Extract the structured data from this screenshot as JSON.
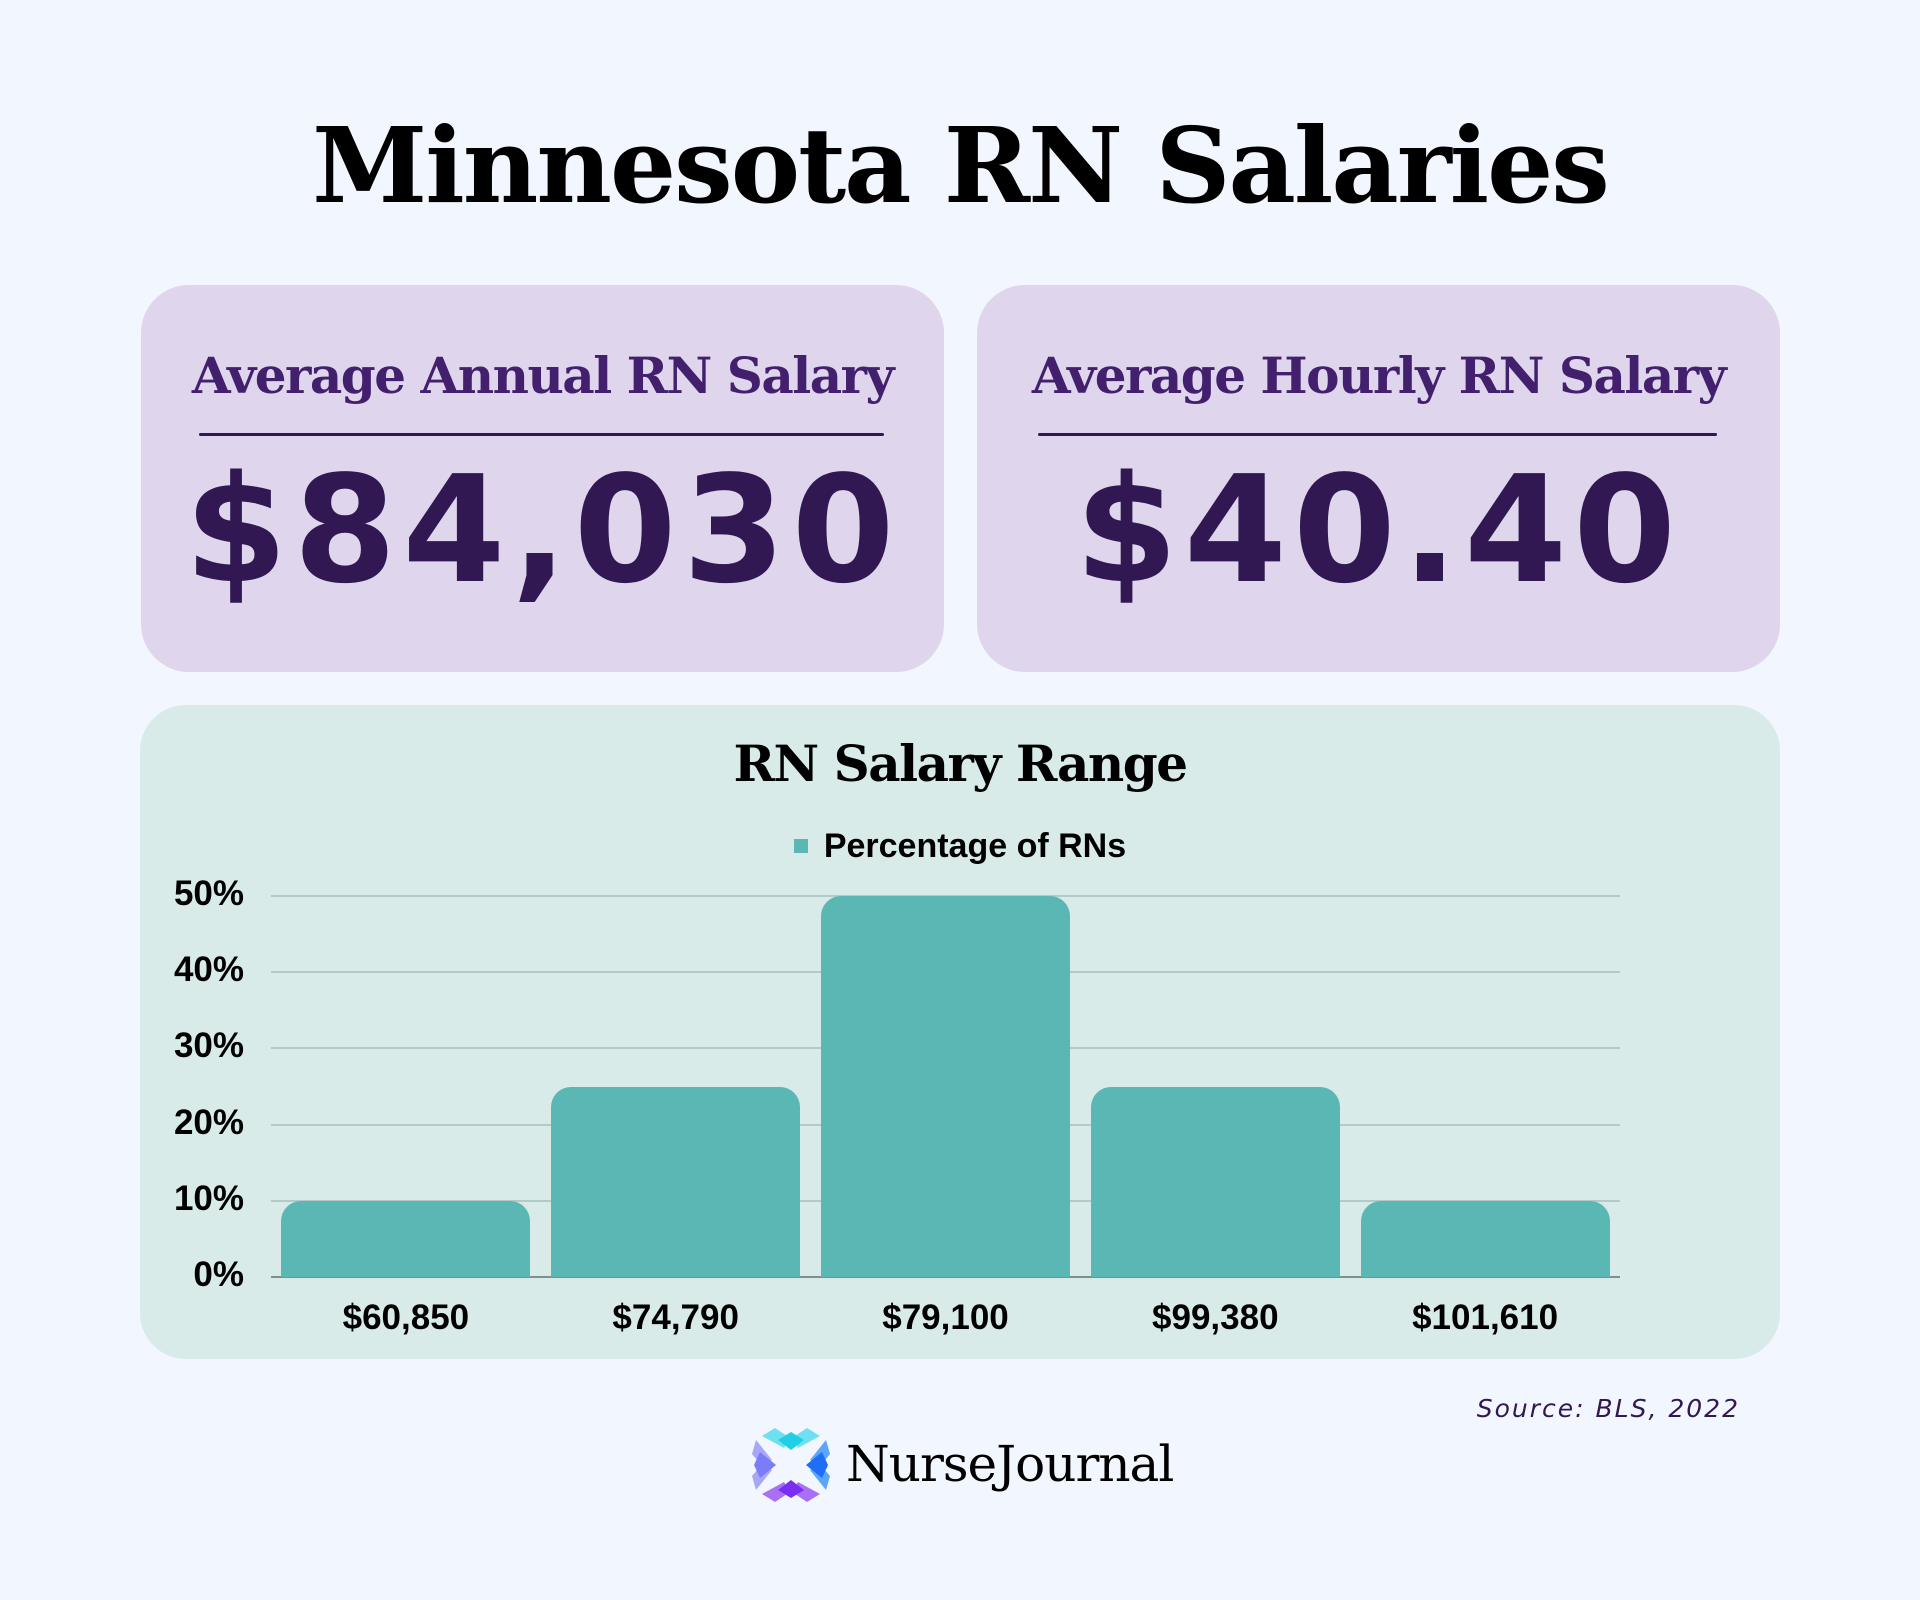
{
  "page": {
    "title": "Minnesota RN Salaries",
    "background_color": "#f2f6fe"
  },
  "cards": [
    {
      "title": "Average Annual RN Salary",
      "value": "$84,030",
      "background_color": "#dfd5ec",
      "title_color": "#42206e",
      "value_color": "#311852"
    },
    {
      "title": "Average Hourly RN Salary",
      "value": "$40.40",
      "background_color": "#dfd5ec",
      "title_color": "#42206e",
      "value_color": "#311852"
    }
  ],
  "chart": {
    "title": "RN Salary Range",
    "legend_label": "Percentage of RNs",
    "bar_color": "#5ab7b3",
    "panel_color": "#d8ebe8",
    "y_ticks": [
      "50%",
      "40%",
      "30%",
      "20%",
      "10%",
      "0%"
    ],
    "x_labels": [
      "$60,850",
      "$74,790",
      "$79,100",
      "$99,380",
      "$101,610"
    ]
  },
  "chart_data": {
    "type": "bar",
    "title": "RN Salary Range",
    "categories": [
      "$60,850",
      "$74,790",
      "$79,100",
      "$99,380",
      "$101,610"
    ],
    "series": [
      {
        "name": "Percentage of RNs",
        "values": [
          10,
          25,
          50,
          25,
          10
        ]
      }
    ],
    "xlabel": "",
    "ylabel": "",
    "ylim": [
      0,
      50
    ],
    "y_tick_labels": [
      "0%",
      "10%",
      "20%",
      "30%",
      "40%",
      "50%"
    ],
    "grid": true,
    "legend_position": "top"
  },
  "footer": {
    "source": "Source: BLS, 2022",
    "logo_text": "NurseJournal",
    "logo_icon": "nursejournal-x-petals-icon"
  }
}
